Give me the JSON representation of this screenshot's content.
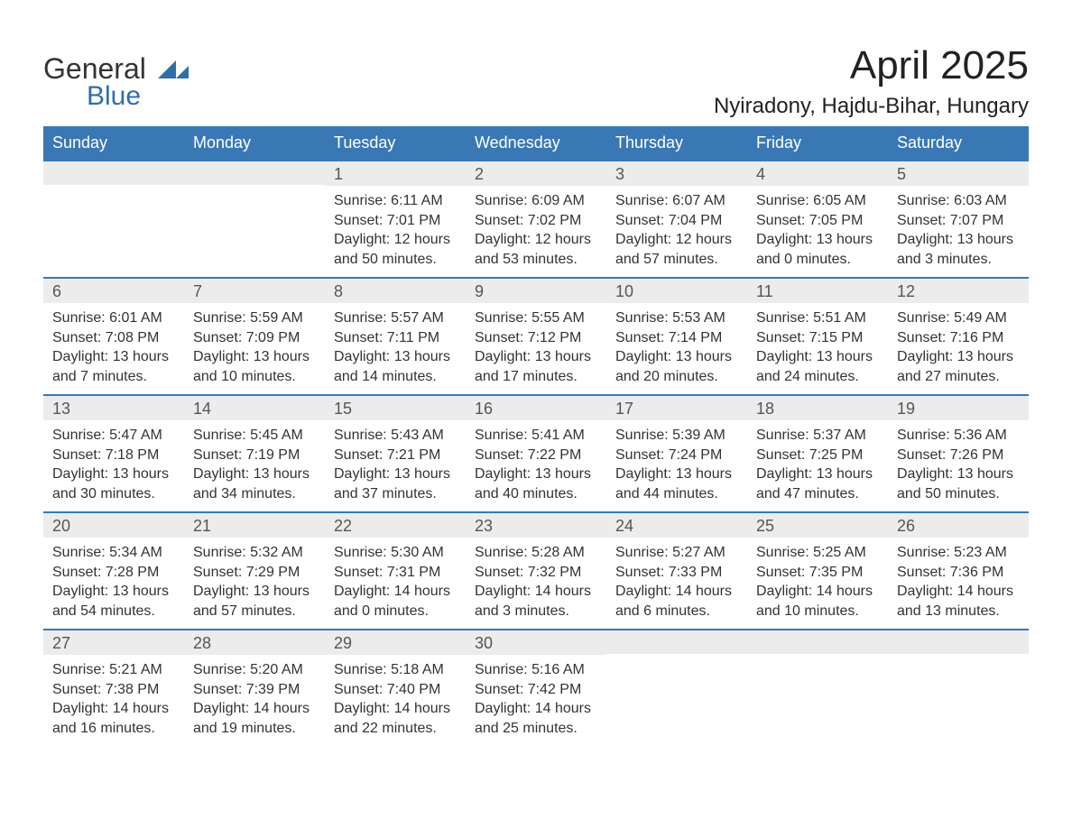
{
  "logo": {
    "text1": "General",
    "text2": "Blue"
  },
  "header": {
    "month_title": "April 2025",
    "location": "Nyiradony, Hajdu-Bihar, Hungary"
  },
  "colors": {
    "header_bg": "#3a78b5",
    "header_text": "#ffffff",
    "daynum_bg": "#ececec",
    "daynum_text": "#555555",
    "body_text": "#333333",
    "week_border": "#3a78b5",
    "logo_blue": "#2f6fa7",
    "page_bg": "#ffffff"
  },
  "dow": [
    "Sunday",
    "Monday",
    "Tuesday",
    "Wednesday",
    "Thursday",
    "Friday",
    "Saturday"
  ],
  "weeks": [
    [
      {
        "empty": true
      },
      {
        "empty": true
      },
      {
        "num": "1",
        "sunrise": "Sunrise: 6:11 AM",
        "sunset": "Sunset: 7:01 PM",
        "daylight": "Daylight: 12 hours and 50 minutes."
      },
      {
        "num": "2",
        "sunrise": "Sunrise: 6:09 AM",
        "sunset": "Sunset: 7:02 PM",
        "daylight": "Daylight: 12 hours and 53 minutes."
      },
      {
        "num": "3",
        "sunrise": "Sunrise: 6:07 AM",
        "sunset": "Sunset: 7:04 PM",
        "daylight": "Daylight: 12 hours and 57 minutes."
      },
      {
        "num": "4",
        "sunrise": "Sunrise: 6:05 AM",
        "sunset": "Sunset: 7:05 PM",
        "daylight": "Daylight: 13 hours and 0 minutes."
      },
      {
        "num": "5",
        "sunrise": "Sunrise: 6:03 AM",
        "sunset": "Sunset: 7:07 PM",
        "daylight": "Daylight: 13 hours and 3 minutes."
      }
    ],
    [
      {
        "num": "6",
        "sunrise": "Sunrise: 6:01 AM",
        "sunset": "Sunset: 7:08 PM",
        "daylight": "Daylight: 13 hours and 7 minutes."
      },
      {
        "num": "7",
        "sunrise": "Sunrise: 5:59 AM",
        "sunset": "Sunset: 7:09 PM",
        "daylight": "Daylight: 13 hours and 10 minutes."
      },
      {
        "num": "8",
        "sunrise": "Sunrise: 5:57 AM",
        "sunset": "Sunset: 7:11 PM",
        "daylight": "Daylight: 13 hours and 14 minutes."
      },
      {
        "num": "9",
        "sunrise": "Sunrise: 5:55 AM",
        "sunset": "Sunset: 7:12 PM",
        "daylight": "Daylight: 13 hours and 17 minutes."
      },
      {
        "num": "10",
        "sunrise": "Sunrise: 5:53 AM",
        "sunset": "Sunset: 7:14 PM",
        "daylight": "Daylight: 13 hours and 20 minutes."
      },
      {
        "num": "11",
        "sunrise": "Sunrise: 5:51 AM",
        "sunset": "Sunset: 7:15 PM",
        "daylight": "Daylight: 13 hours and 24 minutes."
      },
      {
        "num": "12",
        "sunrise": "Sunrise: 5:49 AM",
        "sunset": "Sunset: 7:16 PM",
        "daylight": "Daylight: 13 hours and 27 minutes."
      }
    ],
    [
      {
        "num": "13",
        "sunrise": "Sunrise: 5:47 AM",
        "sunset": "Sunset: 7:18 PM",
        "daylight": "Daylight: 13 hours and 30 minutes."
      },
      {
        "num": "14",
        "sunrise": "Sunrise: 5:45 AM",
        "sunset": "Sunset: 7:19 PM",
        "daylight": "Daylight: 13 hours and 34 minutes."
      },
      {
        "num": "15",
        "sunrise": "Sunrise: 5:43 AM",
        "sunset": "Sunset: 7:21 PM",
        "daylight": "Daylight: 13 hours and 37 minutes."
      },
      {
        "num": "16",
        "sunrise": "Sunrise: 5:41 AM",
        "sunset": "Sunset: 7:22 PM",
        "daylight": "Daylight: 13 hours and 40 minutes."
      },
      {
        "num": "17",
        "sunrise": "Sunrise: 5:39 AM",
        "sunset": "Sunset: 7:24 PM",
        "daylight": "Daylight: 13 hours and 44 minutes."
      },
      {
        "num": "18",
        "sunrise": "Sunrise: 5:37 AM",
        "sunset": "Sunset: 7:25 PM",
        "daylight": "Daylight: 13 hours and 47 minutes."
      },
      {
        "num": "19",
        "sunrise": "Sunrise: 5:36 AM",
        "sunset": "Sunset: 7:26 PM",
        "daylight": "Daylight: 13 hours and 50 minutes."
      }
    ],
    [
      {
        "num": "20",
        "sunrise": "Sunrise: 5:34 AM",
        "sunset": "Sunset: 7:28 PM",
        "daylight": "Daylight: 13 hours and 54 minutes."
      },
      {
        "num": "21",
        "sunrise": "Sunrise: 5:32 AM",
        "sunset": "Sunset: 7:29 PM",
        "daylight": "Daylight: 13 hours and 57 minutes."
      },
      {
        "num": "22",
        "sunrise": "Sunrise: 5:30 AM",
        "sunset": "Sunset: 7:31 PM",
        "daylight": "Daylight: 14 hours and 0 minutes."
      },
      {
        "num": "23",
        "sunrise": "Sunrise: 5:28 AM",
        "sunset": "Sunset: 7:32 PM",
        "daylight": "Daylight: 14 hours and 3 minutes."
      },
      {
        "num": "24",
        "sunrise": "Sunrise: 5:27 AM",
        "sunset": "Sunset: 7:33 PM",
        "daylight": "Daylight: 14 hours and 6 minutes."
      },
      {
        "num": "25",
        "sunrise": "Sunrise: 5:25 AM",
        "sunset": "Sunset: 7:35 PM",
        "daylight": "Daylight: 14 hours and 10 minutes."
      },
      {
        "num": "26",
        "sunrise": "Sunrise: 5:23 AM",
        "sunset": "Sunset: 7:36 PM",
        "daylight": "Daylight: 14 hours and 13 minutes."
      }
    ],
    [
      {
        "num": "27",
        "sunrise": "Sunrise: 5:21 AM",
        "sunset": "Sunset: 7:38 PM",
        "daylight": "Daylight: 14 hours and 16 minutes."
      },
      {
        "num": "28",
        "sunrise": "Sunrise: 5:20 AM",
        "sunset": "Sunset: 7:39 PM",
        "daylight": "Daylight: 14 hours and 19 minutes."
      },
      {
        "num": "29",
        "sunrise": "Sunrise: 5:18 AM",
        "sunset": "Sunset: 7:40 PM",
        "daylight": "Daylight: 14 hours and 22 minutes."
      },
      {
        "num": "30",
        "sunrise": "Sunrise: 5:16 AM",
        "sunset": "Sunset: 7:42 PM",
        "daylight": "Daylight: 14 hours and 25 minutes."
      },
      {
        "empty": true
      },
      {
        "empty": true
      },
      {
        "empty": true
      }
    ]
  ]
}
